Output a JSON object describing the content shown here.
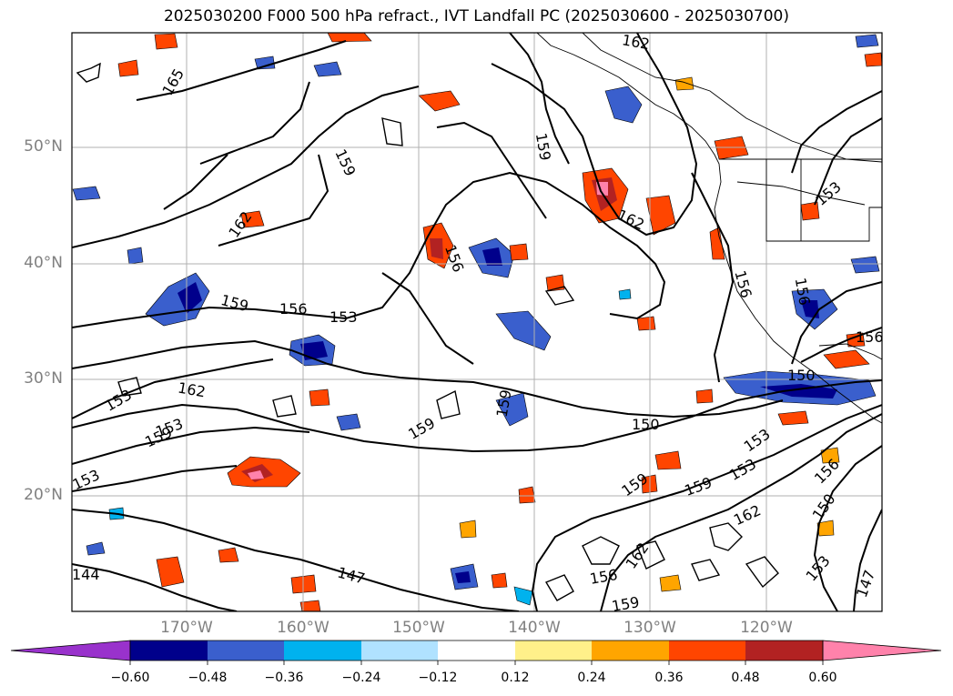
{
  "title": "2025030200 F000 500 hPa refract., IVT Landfall PC (2025030600 - 2025030700)",
  "map": {
    "lat_labels": [
      "50°N",
      "40°N",
      "30°N",
      "20°N"
    ],
    "lon_labels": [
      "170°W",
      "160°W",
      "150°W",
      "140°W",
      "130°W",
      "120°W"
    ],
    "contour_labels": [
      "165",
      "162",
      "159",
      "159",
      "159",
      "162",
      "162",
      "156",
      "159",
      "156",
      "153",
      "153",
      "162",
      "159",
      "153",
      "159",
      "150",
      "153",
      "153",
      "150",
      "153",
      "156",
      "159",
      "162",
      "150",
      "159",
      "162",
      "153",
      "147",
      "147",
      "144",
      "156",
      "159",
      "156",
      "153",
      "156"
    ],
    "colors": {
      "contour": "#000000",
      "grid": "#b0b0b0",
      "neg_dark": "#00008b",
      "neg_mid": "#3a5fcd",
      "neg_light": "#00b2ee",
      "neg_pale": "#b0e2ff",
      "pos_pale": "#fff08a",
      "pos_light": "#ffa500",
      "pos_mid": "#ff4500",
      "pos_dark": "#b22222",
      "pos_pink": "#ff82ab"
    }
  },
  "colorbar": {
    "ticks": [
      "−0.60",
      "−0.48",
      "−0.36",
      "−0.24",
      "−0.12",
      "0.12",
      "0.24",
      "0.36",
      "0.48",
      "0.60"
    ],
    "colors": [
      "#9932cc",
      "#00008b",
      "#3a5fcd",
      "#00b2ee",
      "#b0e2ff",
      "#ffffff",
      "#fff08a",
      "#ffa500",
      "#ff4500",
      "#b22222",
      "#ff82ab"
    ]
  }
}
